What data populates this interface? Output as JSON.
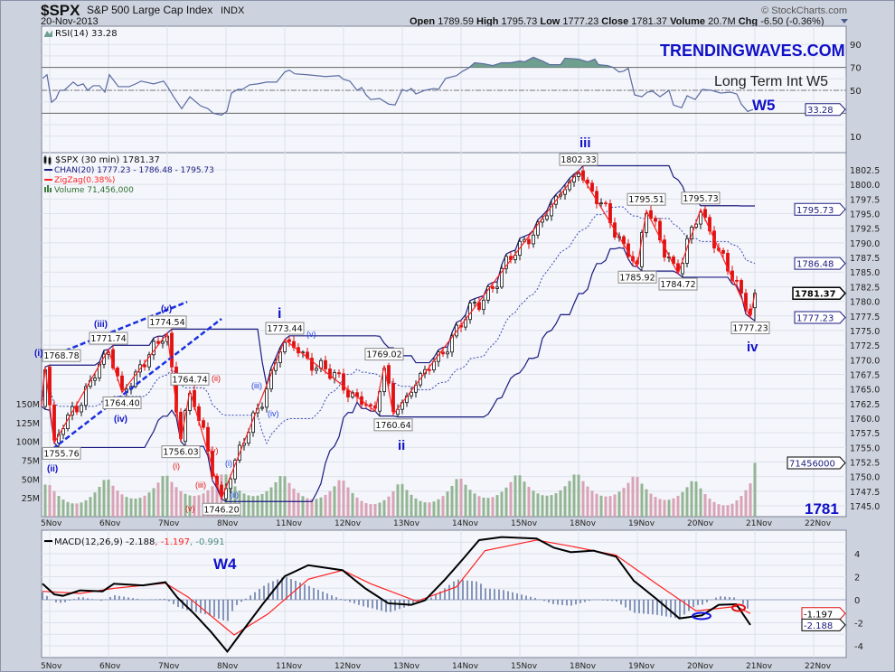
{
  "header": {
    "symbol": "$SPX",
    "name": "S&P 500 Large Cap Index",
    "exchange": "INDX",
    "date": "20-Nov-2013",
    "copyright": "© StockCharts.com",
    "open_label": "Open",
    "open": "1789.59",
    "high_label": "High",
    "high": "1795.73",
    "low_label": "Low",
    "low": "1777.23",
    "close_label": "Close",
    "close": "1781.37",
    "volume_label": "Volume",
    "volume": "20.7M",
    "chg_label": "Chg",
    "chg": "-6.50 (-0.36%)"
  },
  "annotations": {
    "site": "TRENDINGWAVES.COM",
    "long_term": "Long Term Int W5",
    "w5": "W5",
    "w4": "W4",
    "wave_i": "i",
    "wave_ii": "ii",
    "wave_iii": "iii",
    "wave_iv": "iv",
    "level": "1781",
    "minor_blue": [
      "(i)",
      "(ii)",
      "(iii)",
      "(iv)",
      "(v)"
    ],
    "sub_red": [
      "(i)",
      "(ii)",
      "(iii)",
      "(iv)",
      "(v)"
    ],
    "sub_blue": [
      "(i)",
      "(ii)",
      "(iii)",
      "(iv)",
      "(v)"
    ]
  },
  "colors": {
    "background": "#cdd3de",
    "panel": "#f4f6fb",
    "grid": "#dde1ea",
    "rsi_line": "#5a6aa0",
    "rsi_fill": "#6f9f8f",
    "channel": "#1a1a80",
    "zigzag": "#ff2020",
    "down_candle": "#e01010",
    "vol_up": "#93b593",
    "vol_down": "#d9a3b6",
    "histogram": "#6b7fa8",
    "macd": "#000000",
    "signal": "#ff2020",
    "accent_blue": "#1010c8"
  },
  "chart_data": [
    {
      "type": "line",
      "title": "RSI(14) 33.28",
      "legend": "RSI(14) 33.28",
      "ylim": [
        0,
        100
      ],
      "yticks": [
        "90",
        "70",
        "50",
        "10"
      ],
      "ytick_values": [
        90,
        70,
        50,
        10
      ],
      "reference_lines": [
        70,
        50,
        30
      ],
      "last_value": "33.28",
      "points": [
        [
          -1.6,
          60.4
        ],
        [
          -0.6,
          63.6
        ],
        [
          0.4,
          39.6
        ],
        [
          1.4,
          42.8
        ],
        [
          2.2,
          50
        ],
        [
          3.2,
          50
        ],
        [
          5.2,
          57.2
        ],
        [
          6.2,
          54
        ],
        [
          7.4,
          55.6
        ],
        [
          8.4,
          50
        ],
        [
          9.6,
          54
        ],
        [
          11,
          54
        ],
        [
          12.2,
          48.4
        ],
        [
          13.2,
          63.6
        ],
        [
          15.2,
          53.2
        ],
        [
          17.6,
          53.2
        ],
        [
          19,
          55.6
        ],
        [
          20.2,
          58
        ],
        [
          23,
          55.6
        ],
        [
          25.2,
          58
        ],
        [
          26.2,
          52.4
        ],
        [
          27.4,
          44.4
        ],
        [
          29.2,
          34
        ],
        [
          31,
          44.4
        ],
        [
          33.4,
          36.4
        ],
        [
          35,
          34
        ],
        [
          36.2,
          30
        ],
        [
          38,
          28.4
        ],
        [
          39.2,
          31.6
        ],
        [
          40.2,
          47.6
        ],
        [
          41.6,
          50.8
        ],
        [
          42.6,
          50.8
        ],
        [
          44.2,
          54.8
        ],
        [
          46,
          55.6
        ],
        [
          48,
          57.2
        ],
        [
          50.2,
          57.2
        ],
        [
          52,
          66
        ],
        [
          53,
          67.6
        ],
        [
          54.2,
          64.4
        ],
        [
          57,
          63.6
        ],
        [
          61,
          62
        ],
        [
          64,
          62.8
        ],
        [
          65,
          59.6
        ],
        [
          66.4,
          58
        ],
        [
          68,
          50
        ],
        [
          69,
          52.4
        ],
        [
          70,
          46
        ],
        [
          71,
          42
        ],
        [
          73,
          42.8
        ],
        [
          75,
          38
        ],
        [
          76.4,
          37.2
        ],
        [
          78,
          50.8
        ],
        [
          79,
          49.2
        ],
        [
          80,
          51.6
        ],
        [
          81,
          46.8
        ],
        [
          83,
          50
        ],
        [
          85,
          51.6
        ],
        [
          86,
          50.8
        ],
        [
          87.6,
          60.4
        ],
        [
          90,
          62.8
        ],
        [
          91.4,
          66.8
        ],
        [
          92.6,
          69.2
        ],
        [
          94,
          74
        ],
        [
          96,
          73.2
        ],
        [
          98,
          71.6
        ],
        [
          100,
          74
        ],
        [
          102,
          74
        ],
        [
          104,
          75.6
        ],
        [
          105,
          74.8
        ],
        [
          107,
          78.8
        ],
        [
          109,
          75.6
        ],
        [
          110.6,
          72.4
        ],
        [
          113,
          72.4
        ],
        [
          114,
          78
        ],
        [
          117,
          77.2
        ],
        [
          119,
          74.8
        ],
        [
          120.6,
          77.2
        ],
        [
          121.4,
          72.4
        ],
        [
          123.4,
          71.6
        ],
        [
          124.6,
          70
        ],
        [
          126,
          66
        ],
        [
          127,
          66.8
        ],
        [
          128,
          69.2
        ],
        [
          128.4,
          62
        ],
        [
          129.4,
          46
        ],
        [
          131,
          44.4
        ],
        [
          132.2,
          48.4
        ],
        [
          133.4,
          49.2
        ],
        [
          135,
          44.4
        ],
        [
          137,
          50
        ],
        [
          138,
          37.2
        ],
        [
          139.8,
          34.8
        ],
        [
          141,
          45.2
        ],
        [
          142.8,
          42
        ],
        [
          144.4,
          50.8
        ],
        [
          146.4,
          50
        ],
        [
          148.4,
          47.6
        ],
        [
          150.6,
          48.4
        ],
        [
          152,
          46.8
        ],
        [
          153,
          38
        ],
        [
          154.4,
          31.6
        ],
        [
          155.6,
          33.28
        ]
      ]
    },
    {
      "type": "candlestick",
      "title": "$SPX (30 min) 1781.37",
      "legend": [
        "$SPX (30 min) 1781.37",
        "CHAN(20) 1777.23 - 1786.48 - 1795.73",
        "ZigZag(0.38%)",
        "Volume 71,456,000"
      ],
      "interval": "30 min",
      "bars_per_day": 13,
      "ylim": [
        1743,
        1805
      ],
      "ytick_values": [
        1745.0,
        1747.5,
        1750.0,
        1752.5,
        1755.0,
        1757.5,
        1760.0,
        1762.5,
        1765.0,
        1767.5,
        1770.0,
        1772.5,
        1775.0,
        1777.5,
        1780.0,
        1782.5,
        1785.0,
        1787.5,
        1790.0,
        1792.5,
        1795.0,
        1797.5,
        1800.0,
        1802.5
      ],
      "x_labels": [
        "5Nov",
        "6Nov",
        "7Nov",
        "8Nov",
        "11Nov",
        "12Nov",
        "13Nov",
        "14Nov",
        "15Nov",
        "18Nov",
        "19Nov",
        "20Nov",
        "21Nov",
        "22Nov"
      ],
      "zigzag": [
        {
          "bar": -2,
          "price": 1762.0,
          "label": ""
        },
        {
          "bar": -1,
          "price": 1768.78,
          "label": "1768.78"
        },
        {
          "bar": 1,
          "price": 1755.76,
          "label": "1755.76"
        },
        {
          "bar": 13,
          "price": 1771.74,
          "label": "1771.74"
        },
        {
          "bar": 16,
          "price": 1764.4,
          "label": "1764.40"
        },
        {
          "bar": 26,
          "price": 1774.54,
          "label": "1774.54"
        },
        {
          "bar": 29,
          "price": 1756.03,
          "label": "1756.03"
        },
        {
          "bar": 31,
          "price": 1764.74,
          "label": "1764.74"
        },
        {
          "bar": 38,
          "price": 1746.2,
          "label": "1746.20"
        },
        {
          "bar": 52,
          "price": 1773.44,
          "label": "1773.44"
        },
        {
          "bar": 72,
          "price": 1761.2,
          "label": ""
        },
        {
          "bar": 74,
          "price": 1769.02,
          "label": "1769.02"
        },
        {
          "bar": 76,
          "price": 1760.64,
          "label": "1760.64"
        },
        {
          "bar": 117,
          "price": 1802.33,
          "label": "1802.33"
        },
        {
          "bar": 130,
          "price": 1785.92,
          "label": "1785.92"
        },
        {
          "bar": 132,
          "price": 1795.51,
          "label": "1795.51"
        },
        {
          "bar": 139,
          "price": 1784.72,
          "label": "1784.72"
        },
        {
          "bar": 144,
          "price": 1795.73,
          "label": "1795.73"
        },
        {
          "bar": 155,
          "price": 1777.23,
          "label": "1777.23"
        },
        {
          "bar": 156,
          "price": 1781.37,
          "label": ""
        }
      ],
      "trendlines": [
        {
          "from": [
            -1.6,
            1770.0
          ],
          "to": [
            30.4,
            1779.9
          ]
        },
        {
          "from": [
            0.6,
            1754.7
          ],
          "to": [
            38,
            1777.0
          ]
        }
      ],
      "channel_period": 20,
      "channel_last": {
        "lower": "1777.23",
        "mid": "1786.48",
        "upper": "1795.73"
      },
      "last_close": "1781.37",
      "volume_ticks": [
        "25M",
        "50M",
        "75M",
        "100M",
        "125M",
        "150M"
      ],
      "volume_tick_values": [
        25,
        50,
        75,
        100,
        125,
        150
      ],
      "volume_last": "71456000",
      "volume_last_millions": 71.456
    },
    {
      "type": "line",
      "title": "MACD(12,26,9)",
      "legend": {
        "label": "MACD(12,26,9)",
        "macd": "-2.188",
        "signal": "-1.197",
        "histogram": "-0.991"
      },
      "ylim": [
        -5,
        6
      ],
      "ytick_values": [
        4,
        2,
        0,
        -2,
        -4
      ],
      "yticks": [
        "4",
        "2",
        "0",
        "-2",
        "-4"
      ],
      "macd": [
        [
          -1.6,
          1.39
        ],
        [
          1,
          0.47
        ],
        [
          2.9,
          0.34
        ],
        [
          6.7,
          0.81
        ],
        [
          11.7,
          0.73
        ],
        [
          14.2,
          1.39
        ],
        [
          20.6,
          1.25
        ],
        [
          25.6,
          1.52
        ],
        [
          28.2,
          0.21
        ],
        [
          32,
          -1.23
        ],
        [
          35.7,
          -2.8
        ],
        [
          39.3,
          -4.5
        ],
        [
          42,
          -3.06
        ],
        [
          47,
          -0.44
        ],
        [
          52,
          2.04
        ],
        [
          57.2,
          3.0
        ],
        [
          64.8,
          2.56
        ],
        [
          69.8,
          0.99
        ],
        [
          74.9,
          -0.31
        ],
        [
          80,
          -0.44
        ],
        [
          83,
          -0.05
        ],
        [
          87.5,
          1.78
        ],
        [
          91.3,
          3.48
        ],
        [
          95,
          5.18
        ],
        [
          100,
          5.44
        ],
        [
          107.7,
          5.31
        ],
        [
          111.5,
          4.52
        ],
        [
          115.3,
          4.13
        ],
        [
          120.3,
          4.26
        ],
        [
          125.3,
          3.74
        ],
        [
          129.2,
          1.65
        ],
        [
          134.2,
          0.08
        ],
        [
          139.3,
          -1.62
        ],
        [
          144.3,
          -1.36
        ],
        [
          148,
          -0.44
        ],
        [
          151.9,
          -0.39
        ],
        [
          155,
          -2.188
        ]
      ],
      "signal": [
        [
          -1.6,
          0.73
        ],
        [
          6.7,
          0.55
        ],
        [
          14.2,
          0.99
        ],
        [
          25.6,
          1.44
        ],
        [
          30.7,
          0.21
        ],
        [
          40.8,
          -3.06
        ],
        [
          48.3,
          -1.23
        ],
        [
          57.2,
          1.78
        ],
        [
          64.8,
          2.56
        ],
        [
          71,
          1.39
        ],
        [
          81.2,
          -0.13
        ],
        [
          90,
          1.12
        ],
        [
          96.3,
          4.26
        ],
        [
          107.7,
          5.18
        ],
        [
          115.3,
          4.65
        ],
        [
          125.3,
          3.87
        ],
        [
          134.2,
          1.39
        ],
        [
          143,
          -0.97
        ],
        [
          151.9,
          -0.58
        ],
        [
          155,
          -1.197
        ]
      ],
      "last_macd": "-2.188",
      "last_signal": "-1.197"
    }
  ]
}
